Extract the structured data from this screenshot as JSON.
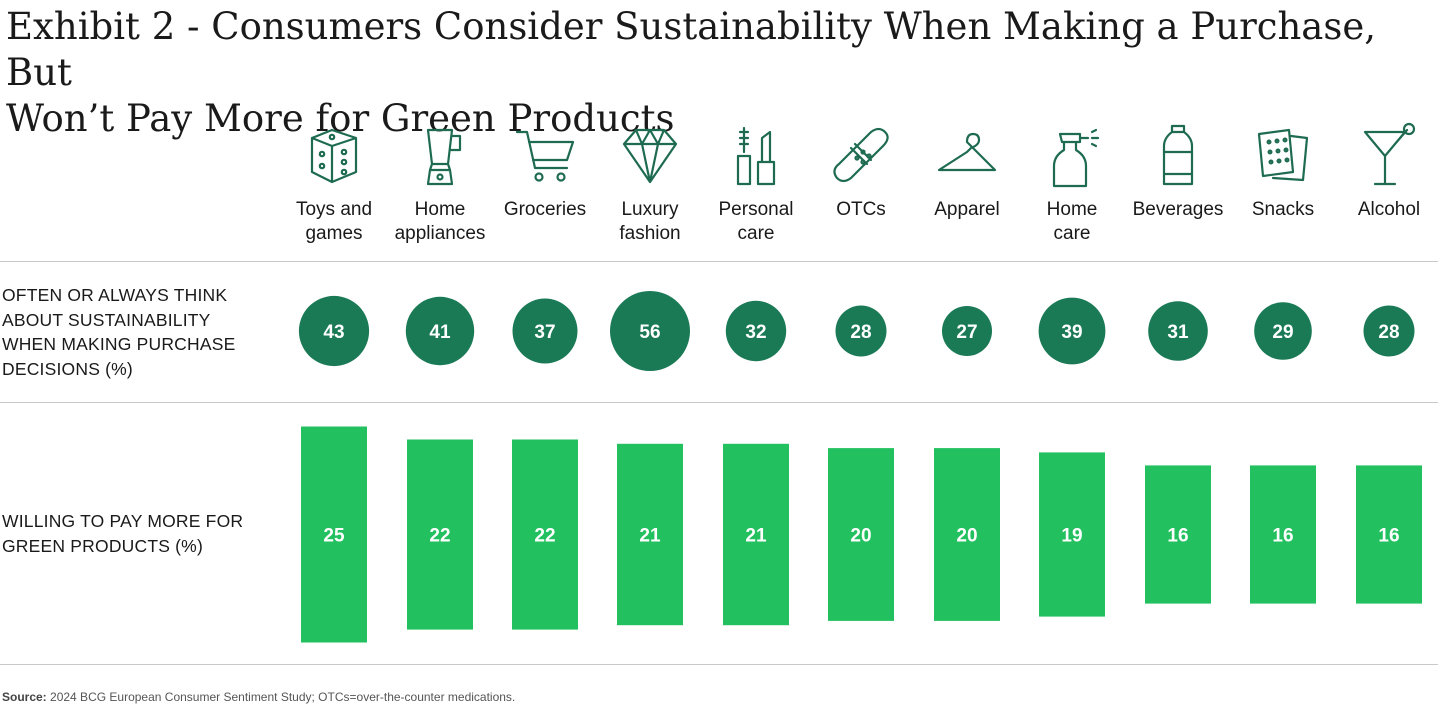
{
  "title": {
    "line1": "Exhibit 2 - Consumers Consider Sustainability When Making a Purchase, But",
    "line2": "Won’t Pay More for Green Products"
  },
  "row_labels": {
    "bubbles": [
      "OFTEN OR ALWAYS THINK",
      "ABOUT SUSTAINABILITY",
      "WHEN MAKING PURCHASE",
      "DECISIONS (%)"
    ],
    "bars": [
      "WILLING TO PAY MORE FOR",
      "GREEN PRODUCTS (%)"
    ]
  },
  "columns": [
    {
      "label": [
        "Toys and",
        "games"
      ],
      "icon": "dice-icon"
    },
    {
      "label": [
        "Home",
        "appliances"
      ],
      "icon": "blender-icon"
    },
    {
      "label": [
        "Groceries"
      ],
      "icon": "shopping-cart-icon"
    },
    {
      "label": [
        "Luxury",
        "fashion"
      ],
      "icon": "diamond-icon"
    },
    {
      "label": [
        "Personal",
        "care"
      ],
      "icon": "mascara-lipstick-icon"
    },
    {
      "label": [
        "OTCs"
      ],
      "icon": "bandage-icon"
    },
    {
      "label": [
        "Apparel"
      ],
      "icon": "hanger-icon"
    },
    {
      "label": [
        "Home",
        "care"
      ],
      "icon": "spray-bottle-icon"
    },
    {
      "label": [
        "Beverages"
      ],
      "icon": "water-bottle-icon"
    },
    {
      "label": [
        "Snacks"
      ],
      "icon": "crackers-icon"
    },
    {
      "label": [
        "Alcohol"
      ],
      "icon": "cocktail-glass-icon"
    }
  ],
  "colors": {
    "bubble": "#1a7a55",
    "bar": "#22c05f",
    "icon_stroke": "#1e6b52"
  },
  "chart_data": {
    "type": "bar",
    "categories": [
      "Toys and games",
      "Home appliances",
      "Groceries",
      "Luxury fashion",
      "Personal care",
      "OTCs",
      "Apparel",
      "Home care",
      "Beverages",
      "Snacks",
      "Alcohol"
    ],
    "series": [
      {
        "name": "OFTEN OR ALWAYS THINK ABOUT SUSTAINABILITY WHEN MAKING PURCHASE DECISIONS (%)",
        "style": "bubble",
        "values": [
          43,
          41,
          37,
          56,
          32,
          28,
          27,
          39,
          31,
          29,
          28
        ]
      },
      {
        "name": "WILLING TO PAY MORE FOR GREEN PRODUCTS (%)",
        "style": "bar",
        "values": [
          25,
          22,
          22,
          21,
          21,
          20,
          20,
          19,
          16,
          16,
          16
        ]
      }
    ]
  },
  "source": {
    "label": "Source:",
    "text": "2024 BCG European Consumer Sentiment Study; OTCs=over-the-counter medications."
  }
}
